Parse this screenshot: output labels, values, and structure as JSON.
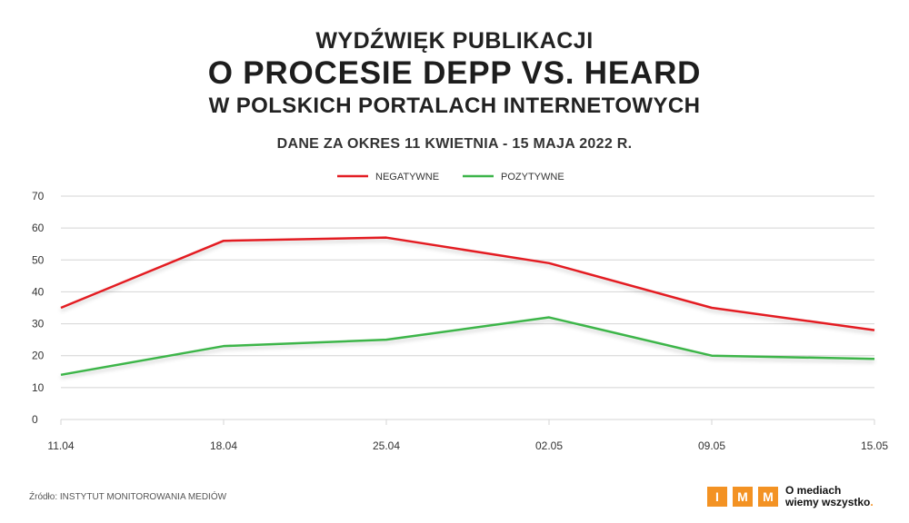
{
  "header": {
    "line1": "WYDŹWIĘK PUBLIKACJI",
    "line2": "O PROCESIE DEPP VS. HEARD",
    "line3": "W POLSKICH PORTALACH INTERNETOWYCH",
    "subtitle": "DANE ZA OKRES 11 KWIETNIA - 15 MAJA 2022 R."
  },
  "footer": {
    "source": "Źródło: INSTYTUT MONITOROWANIA MEDIÓW",
    "brand_letters": [
      "I",
      "M",
      "M"
    ],
    "brand_line1": "O mediach",
    "brand_line2": "wiemy wszystko",
    "brand_dot": "."
  },
  "colors": {
    "negatywne": "#e31e24",
    "pozytywne": "#3db54a",
    "grid": "#d4d4d4",
    "brand": "#f39223"
  },
  "chart_data": {
    "type": "line",
    "x": [
      "11.04",
      "18.04",
      "25.04",
      "02.05",
      "09.05",
      "15.05"
    ],
    "ylim": [
      0,
      70
    ],
    "yticks": [
      0,
      10,
      20,
      30,
      40,
      50,
      60,
      70
    ],
    "grid": true,
    "legend": "top-center",
    "series": [
      {
        "name": "NEGATYWNE",
        "color": "#e31e24",
        "values": [
          35,
          56,
          57,
          49,
          35,
          28
        ]
      },
      {
        "name": "POZYTYWNE",
        "color": "#3db54a",
        "values": [
          14,
          23,
          25,
          32,
          20,
          19
        ]
      }
    ]
  }
}
